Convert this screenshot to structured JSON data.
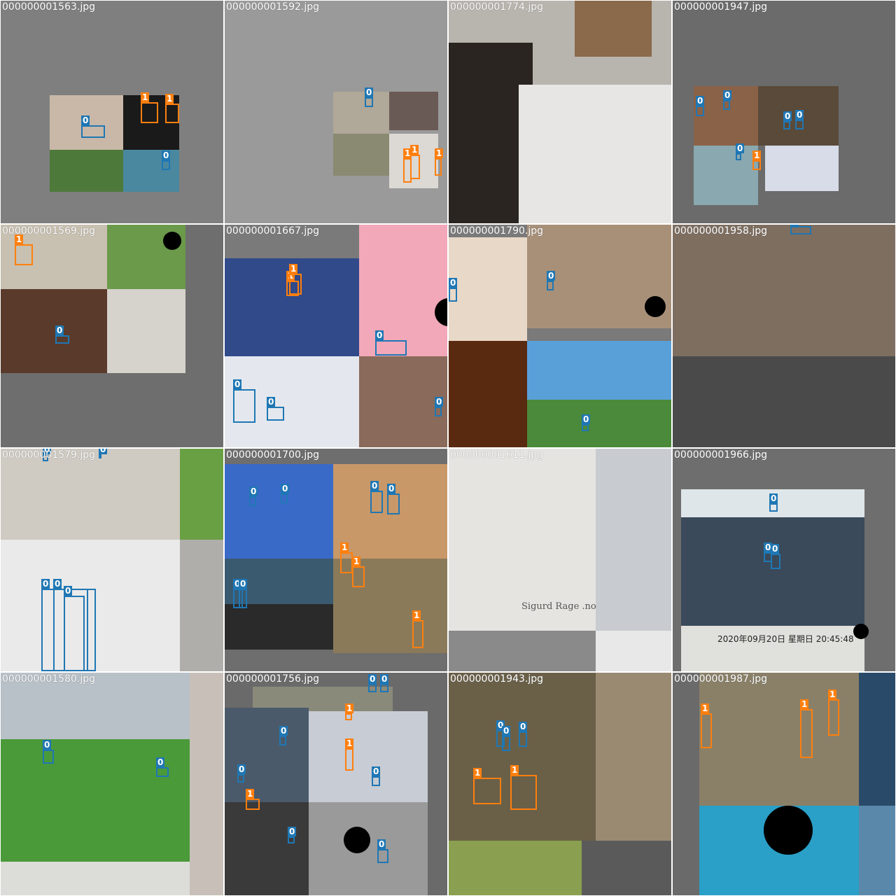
{
  "tiles": [
    {
      "filename": "000000001563.jpg",
      "bg": "#7f7f7f"
    },
    {
      "filename": "000000001592.jpg",
      "bg": "#9a9a9a"
    },
    {
      "filename": "000000001774.jpg",
      "bg": "#7f6a55"
    },
    {
      "filename": "000000001947.jpg",
      "bg": "#6b6b6b"
    },
    {
      "filename": "000000001569.jpg",
      "bg": "#6e6e6e"
    },
    {
      "filename": "000000001667.jpg",
      "bg": "#7a7a7a"
    },
    {
      "filename": "000000001790.jpg",
      "bg": "#7a7a7a"
    },
    {
      "filename": "000000001958.jpg",
      "bg": "#6e6a66"
    },
    {
      "filename": "000000001579.jpg",
      "bg": "#d8d8d8"
    },
    {
      "filename": "000000001700.jpg",
      "bg": "#6e6e6e"
    },
    {
      "filename": "000000001611.jpg",
      "bg": "#d9d6d2"
    },
    {
      "filename": "000000001966.jpg",
      "bg": "#6e6e6e"
    },
    {
      "filename": "000000001580.jpg",
      "bg": "#8a9a7a"
    },
    {
      "filename": "000000001756.jpg",
      "bg": "#6a6a6a"
    },
    {
      "filename": "000000001943.jpg",
      "bg": "#5e5e5e"
    },
    {
      "filename": "000000001987.jpg",
      "bg": "#6a6a6a"
    }
  ],
  "overlay_text": {
    "tile11_watermark": "Sigurd Rage .no",
    "tile11_top_overlay": "2020年09月20日  星期日  20:45:48"
  },
  "class_labels": {
    "person": "0",
    "other": "1"
  },
  "colors": {
    "class0": "#1f77b4",
    "class1": "#ff7f0e"
  }
}
